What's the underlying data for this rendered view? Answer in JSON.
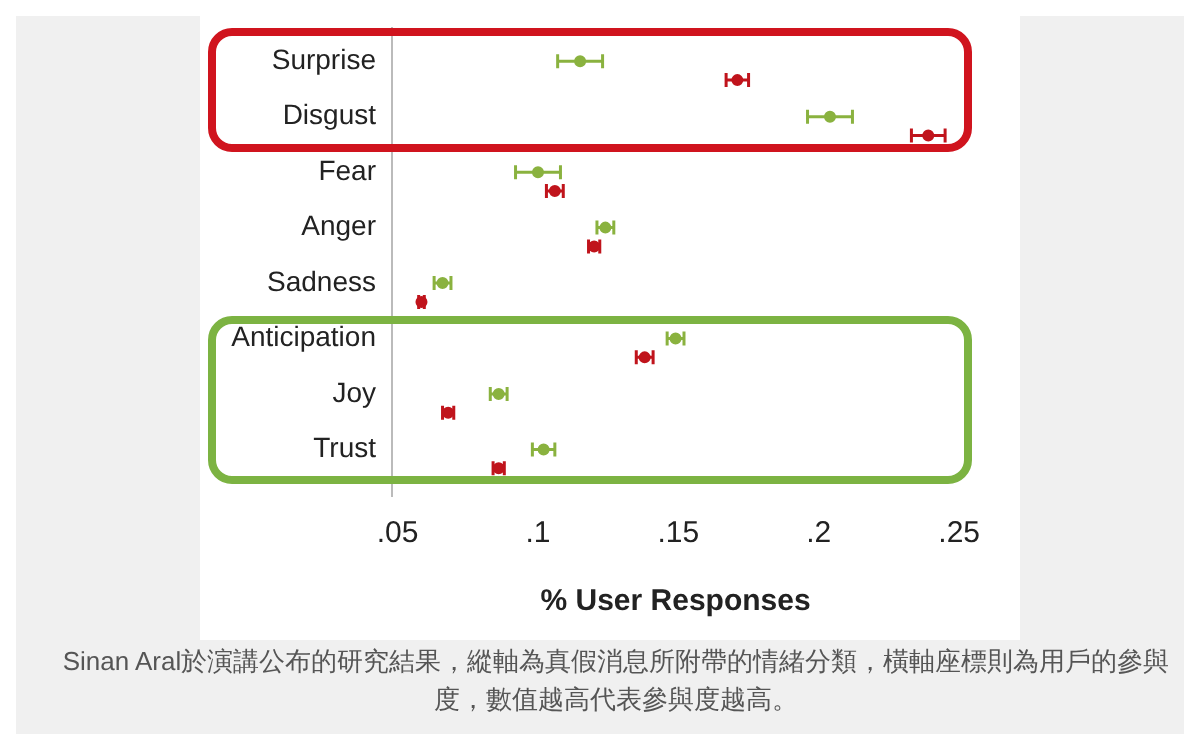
{
  "chart_data": {
    "type": "scatter",
    "xlabel": "% User Responses",
    "categories": [
      "Surprise",
      "Disgust",
      "Fear",
      "Anger",
      "Sadness",
      "Anticipation",
      "Joy",
      "Trust"
    ],
    "series": [
      {
        "color": "#8ab23f",
        "values": [
          0.115,
          0.204,
          0.1,
          0.124,
          0.066,
          0.149,
          0.086,
          0.102
        ],
        "errors": [
          0.008,
          0.008,
          0.008,
          0.003,
          0.003,
          0.003,
          0.003,
          0.004
        ]
      },
      {
        "color": "#c0141c",
        "values": [
          0.171,
          0.239,
          0.106,
          0.12,
          0.0585,
          0.138,
          0.068,
          0.086
        ],
        "errors": [
          0.004,
          0.006,
          0.003,
          0.002,
          0.001,
          0.003,
          0.002,
          0.002
        ]
      }
    ],
    "xlim": [
      0.048,
      0.25
    ],
    "xticks": [
      {
        "value": 0.05,
        "label": ".05"
      },
      {
        "value": 0.1,
        "label": ".1"
      },
      {
        "value": 0.15,
        "label": ".15"
      },
      {
        "value": 0.2,
        "label": ".2"
      },
      {
        "value": 0.25,
        "label": ".25"
      }
    ],
    "orientation": "horizontal",
    "marker": "circle",
    "grid": false,
    "legend": false,
    "annotations": [
      "Sinan Aral於演講公布的研究結果，縱軸為真假消息所附帶的情緒分類，橫軸座標則為用戶的參與度，數值越高代表參與度越高。"
    ]
  }
}
